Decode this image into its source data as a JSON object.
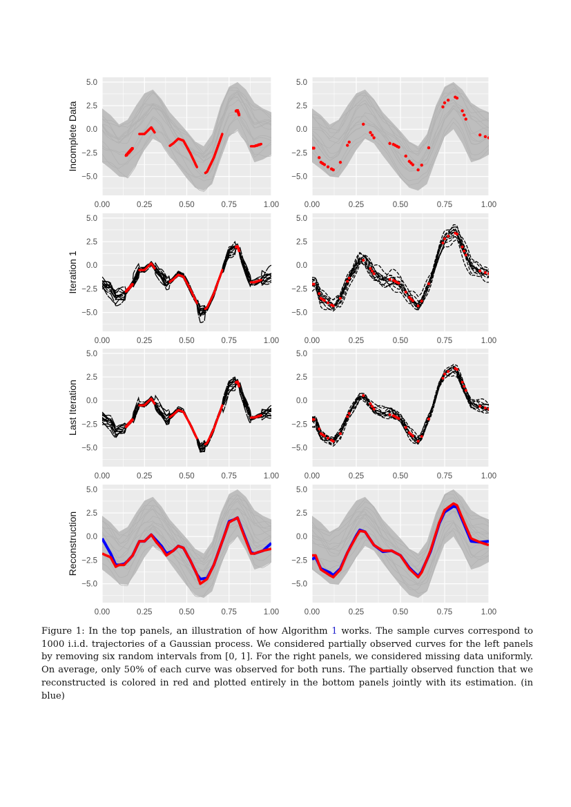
{
  "figure": {
    "caption_label": "Figure 1:",
    "caption_part1": " In the top panels, an illustration of how Algorithm ",
    "caption_ref": "1",
    "caption_part2": " works. The sample curves correspond to 1000 i.i.d. trajectories of a Gaussian process. We considered partially observed curves for the left panels by removing six random intervals from [0, 1]. For the right panels, we considered missing data uniformly. On average, only 50% of each curve was observed for both runs. The partially observed function that we reconstructed is colored in red and plotted entirely in the bottom panels jointly with its estimation. (in blue)"
  },
  "colors": {
    "panel_bg": "#EBEBEB",
    "grid": "#FFFFFF",
    "samples": "#BEBEBE",
    "observed": "#FF0000",
    "estimate": "#0000FF",
    "iterations": "#000000"
  },
  "chart_data": {
    "type": "line",
    "row_labels": [
      "Incomplete Data",
      "Iteration 1",
      "Last Iteration",
      "Reconstruction"
    ],
    "xlim": [
      0,
      1
    ],
    "ylim": [
      -7.0,
      5.5
    ],
    "x_ticks": [
      "0.00",
      "0.25",
      "0.50",
      "0.75",
      "1.00"
    ],
    "x_tick_values": [
      0,
      0.25,
      0.5,
      0.75,
      1
    ],
    "y_ticks": [
      "-5.0",
      "-2.5",
      "0.0",
      "2.5",
      "5.0"
    ],
    "y_tick_values": [
      -5,
      -2.5,
      0,
      2.5,
      5
    ],
    "grid": true,
    "sample_count": 1000,
    "sample_band": {
      "x": [
        0,
        0.05,
        0.1,
        0.15,
        0.2,
        0.25,
        0.3,
        0.35,
        0.4,
        0.45,
        0.5,
        0.55,
        0.6,
        0.65,
        0.7,
        0.75,
        0.8,
        0.85,
        0.9,
        0.95,
        1.0
      ],
      "upper": [
        2.2,
        1.5,
        0.5,
        1.0,
        2.5,
        3.8,
        4.2,
        3.2,
        1.8,
        0.8,
        -0.2,
        -1.3,
        -1.8,
        -0.5,
        2.5,
        4.5,
        5.0,
        4.2,
        2.8,
        2.2,
        1.8
      ],
      "lower": [
        -3.5,
        -4.2,
        -5.0,
        -5.1,
        -3.8,
        -2.2,
        -1.0,
        -1.5,
        -2.8,
        -4.0,
        -5.2,
        -6.2,
        -6.5,
        -5.8,
        -3.2,
        -0.8,
        0.0,
        -1.5,
        -3.5,
        -3.2,
        -2.7
      ]
    },
    "panels": [
      {
        "name": "left",
        "true_curve": {
          "x": [
            0,
            0.05,
            0.08,
            0.1,
            0.13,
            0.15,
            0.18,
            0.22,
            0.25,
            0.29,
            0.32,
            0.35,
            0.38,
            0.42,
            0.45,
            0.48,
            0.52,
            0.56,
            0.58,
            0.62,
            0.66,
            0.7,
            0.72,
            0.75,
            0.78,
            0.8,
            0.83,
            0.88,
            0.9,
            0.95,
            1.0
          ],
          "y": [
            -1.8,
            -2.2,
            -3.2,
            -3.0,
            -3.0,
            -2.6,
            -2.0,
            -0.5,
            -0.5,
            0.2,
            -0.6,
            -1.2,
            -2.0,
            -1.5,
            -1.0,
            -1.2,
            -2.5,
            -4.0,
            -5.0,
            -4.5,
            -3.0,
            -1.0,
            0.0,
            1.5,
            1.8,
            2.0,
            0.5,
            -1.8,
            -1.8,
            -1.5,
            -1.3
          ]
        },
        "estimate": {
          "x": [
            0,
            0.05,
            0.08,
            0.1,
            0.13,
            0.15,
            0.18,
            0.22,
            0.25,
            0.29,
            0.32,
            0.35,
            0.38,
            0.42,
            0.45,
            0.48,
            0.52,
            0.56,
            0.58,
            0.62,
            0.66,
            0.7,
            0.72,
            0.75,
            0.78,
            0.8,
            0.83,
            0.88,
            0.9,
            0.95,
            1.0
          ],
          "y": [
            -0.2,
            -1.8,
            -3.0,
            -3.0,
            -2.9,
            -2.6,
            -2.0,
            -0.5,
            -0.5,
            0.2,
            -0.4,
            -1.0,
            -1.8,
            -1.5,
            -1.0,
            -1.2,
            -2.5,
            -4.0,
            -4.5,
            -4.4,
            -3.0,
            -1.0,
            0.0,
            1.6,
            1.8,
            2.0,
            0.6,
            -1.7,
            -1.8,
            -1.5,
            -0.7
          ]
        },
        "observed_intervals": [
          [
            0.14,
            0.18
          ],
          [
            0.22,
            0.31
          ],
          [
            0.4,
            0.56
          ],
          [
            0.61,
            0.71
          ],
          [
            0.79,
            0.81
          ],
          [
            0.88,
            0.94
          ]
        ]
      },
      {
        "name": "right",
        "true_curve": {
          "x": [
            0,
            0.02,
            0.05,
            0.1,
            0.12,
            0.16,
            0.2,
            0.25,
            0.27,
            0.3,
            0.35,
            0.4,
            0.45,
            0.5,
            0.55,
            0.6,
            0.62,
            0.67,
            0.72,
            0.75,
            0.8,
            0.82,
            0.86,
            0.9,
            0.95,
            1.0
          ],
          "y": [
            -2.0,
            -2.0,
            -3.5,
            -4.1,
            -4.3,
            -3.5,
            -1.7,
            0.0,
            0.6,
            0.5,
            -0.9,
            -1.5,
            -1.5,
            -2.0,
            -3.4,
            -4.3,
            -3.8,
            -1.5,
            1.5,
            2.8,
            3.5,
            3.3,
            1.5,
            -0.2,
            -0.6,
            -0.9
          ]
        },
        "estimate": {
          "x": [
            0,
            0.02,
            0.05,
            0.1,
            0.12,
            0.16,
            0.2,
            0.25,
            0.27,
            0.3,
            0.35,
            0.4,
            0.45,
            0.5,
            0.55,
            0.6,
            0.62,
            0.67,
            0.72,
            0.75,
            0.8,
            0.82,
            0.86,
            0.9,
            0.95,
            1.0
          ],
          "y": [
            -2.4,
            -2.2,
            -3.4,
            -3.8,
            -4.1,
            -3.4,
            -1.7,
            0.1,
            0.7,
            0.5,
            -0.9,
            -1.6,
            -1.5,
            -2.0,
            -3.3,
            -4.2,
            -3.7,
            -1.6,
            1.4,
            2.6,
            3.2,
            3.1,
            1.3,
            -0.5,
            -0.6,
            -0.5
          ]
        },
        "observed_points": [
          0.0,
          0.01,
          0.04,
          0.05,
          0.06,
          0.07,
          0.09,
          0.11,
          0.12,
          0.16,
          0.2,
          0.21,
          0.29,
          0.33,
          0.34,
          0.35,
          0.44,
          0.46,
          0.47,
          0.48,
          0.49,
          0.53,
          0.55,
          0.56,
          0.57,
          0.6,
          0.62,
          0.66,
          0.74,
          0.75,
          0.77,
          0.81,
          0.82,
          0.85,
          0.86,
          0.87,
          0.95,
          0.98,
          1.0
        ]
      }
    ]
  }
}
